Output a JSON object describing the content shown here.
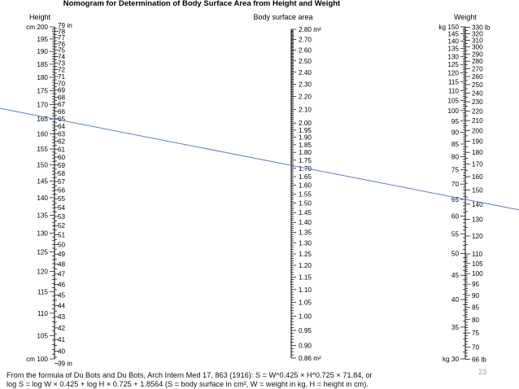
{
  "chart_data": {
    "type": "nomogram",
    "title": "Nomogram for Determination of Body Surface Area from Height and Weight",
    "scales": {
      "height": {
        "heading": "Height",
        "cm_ticks": [
          "cm 200",
          "195",
          "190",
          "185",
          "180",
          "175",
          "170",
          "165",
          "160",
          "155",
          "150",
          "145",
          "140",
          "135",
          "130",
          "125",
          "120",
          "115",
          "110",
          "105",
          "cm 100"
        ],
        "cm_values": [
          200,
          195,
          190,
          185,
          180,
          175,
          170,
          165,
          160,
          155,
          150,
          145,
          140,
          135,
          130,
          125,
          120,
          115,
          110,
          105,
          100
        ],
        "in_ticks": [
          "79 in",
          "78",
          "77",
          "76",
          "75",
          "74",
          "73",
          "72",
          "71",
          "70",
          "69",
          "68",
          "67",
          "66",
          "65",
          "64",
          "63",
          "62",
          "61",
          "60",
          "59",
          "58",
          "57",
          "56",
          "55",
          "54",
          "53",
          "52",
          "51",
          "50",
          "49",
          "48",
          "47",
          "46",
          "45",
          "44",
          "43",
          "42",
          "41",
          "40",
          "39 in"
        ],
        "in_values": [
          79,
          78,
          77,
          76,
          75,
          74,
          73,
          72,
          71,
          70,
          69,
          68,
          67,
          66,
          65,
          64,
          63,
          62,
          61,
          60,
          59,
          58,
          57,
          56,
          55,
          54,
          53,
          52,
          51,
          50,
          49,
          48,
          47,
          46,
          45,
          44,
          43,
          42,
          41,
          40,
          39
        ]
      },
      "bsa": {
        "heading": "Body surface area",
        "ticks": [
          "2.80 m²",
          "2.70",
          "2.60",
          "2.50",
          "2.40",
          "2.30",
          "2.20",
          "2.10",
          "2.00",
          "1.95",
          "1.90",
          "1.85",
          "1.80",
          "1.75",
          "1.70",
          "1.65",
          "1.60",
          "1.55",
          "1.50",
          "1.45",
          "1.40",
          "1.35",
          "1.30",
          "1.25",
          "1.20",
          "1.15",
          "1.10",
          "1.05",
          "1.00",
          "0.95",
          "0.90",
          "0.86 m²"
        ],
        "values": [
          2.8,
          2.7,
          2.6,
          2.5,
          2.4,
          2.3,
          2.2,
          2.1,
          2.0,
          1.95,
          1.9,
          1.85,
          1.8,
          1.75,
          1.7,
          1.65,
          1.6,
          1.55,
          1.5,
          1.45,
          1.4,
          1.35,
          1.3,
          1.25,
          1.2,
          1.15,
          1.1,
          1.05,
          1.0,
          0.95,
          0.9,
          0.86
        ]
      },
      "weight": {
        "heading": "Weight",
        "kg_ticks": [
          "kg 150",
          "145",
          "140",
          "135",
          "130",
          "125",
          "120",
          "115",
          "110",
          "105",
          "100",
          "95",
          "90",
          "85",
          "80",
          "75",
          "70",
          "65",
          "60",
          "55",
          "50",
          "45",
          "40",
          "35",
          "kg 30"
        ],
        "kg_values": [
          150,
          145,
          140,
          135,
          130,
          125,
          120,
          115,
          110,
          105,
          100,
          95,
          90,
          85,
          80,
          75,
          70,
          65,
          60,
          55,
          50,
          45,
          40,
          35,
          30
        ],
        "lb_ticks": [
          "330 lb",
          "320",
          "310",
          "300",
          "290",
          "280",
          "270",
          "260",
          "250",
          "240",
          "230",
          "220",
          "210",
          "200",
          "190",
          "180",
          "170",
          "160",
          "150",
          "140",
          "130",
          "120",
          "110",
          "105",
          "100",
          "95",
          "90",
          "85",
          "80",
          "75",
          "70",
          "66 lb"
        ],
        "lb_values": [
          330,
          320,
          310,
          300,
          290,
          280,
          270,
          260,
          250,
          240,
          230,
          220,
          210,
          200,
          190,
          180,
          170,
          160,
          150,
          140,
          130,
          120,
          110,
          105,
          100,
          95,
          90,
          85,
          80,
          75,
          70,
          66
        ]
      }
    },
    "example_line": {
      "height_cm": 165,
      "bsa_m2": 1.72,
      "weight_kg": 65,
      "color": "#5b7fb5"
    },
    "footnote_line1": "From the formula of Du Bots and Du Bots, Arch Intern Med 17, 863 (1916): S = W^0.425 × H^0.725 × 71.84, or",
    "footnote_line2": "log S = log W × 0.425 + log H × 0.725 + 1.8564 (S = body surface in cm², W = weight in kg, H = height in cm).",
    "slide_number": "23"
  }
}
